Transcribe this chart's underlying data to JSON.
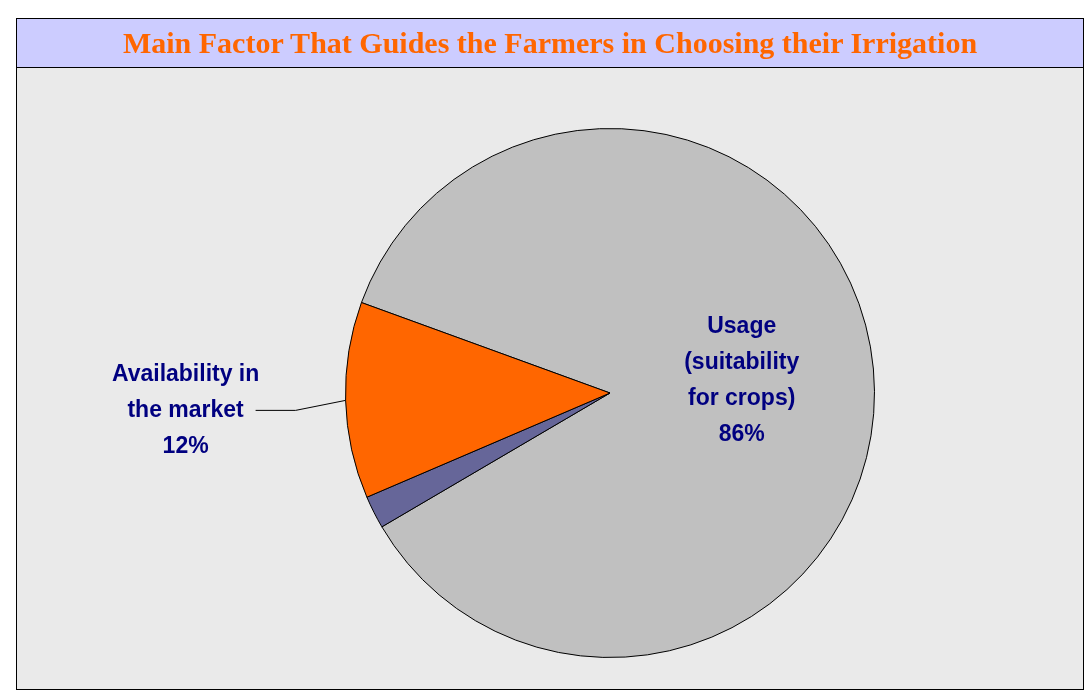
{
  "chart_data": {
    "type": "pie",
    "title": "Main Factor That Guides the Farmers in Choosing their Irrigation",
    "categories": [
      "Usage (suitability for crops)",
      null,
      "Availability in the market"
    ],
    "values": [
      86,
      2,
      12
    ],
    "colors": [
      "#c0c0c0",
      "#666699",
      "#ff6600"
    ],
    "value_labels": [
      "86%",
      null,
      "12%"
    ],
    "legend": false
  }
}
